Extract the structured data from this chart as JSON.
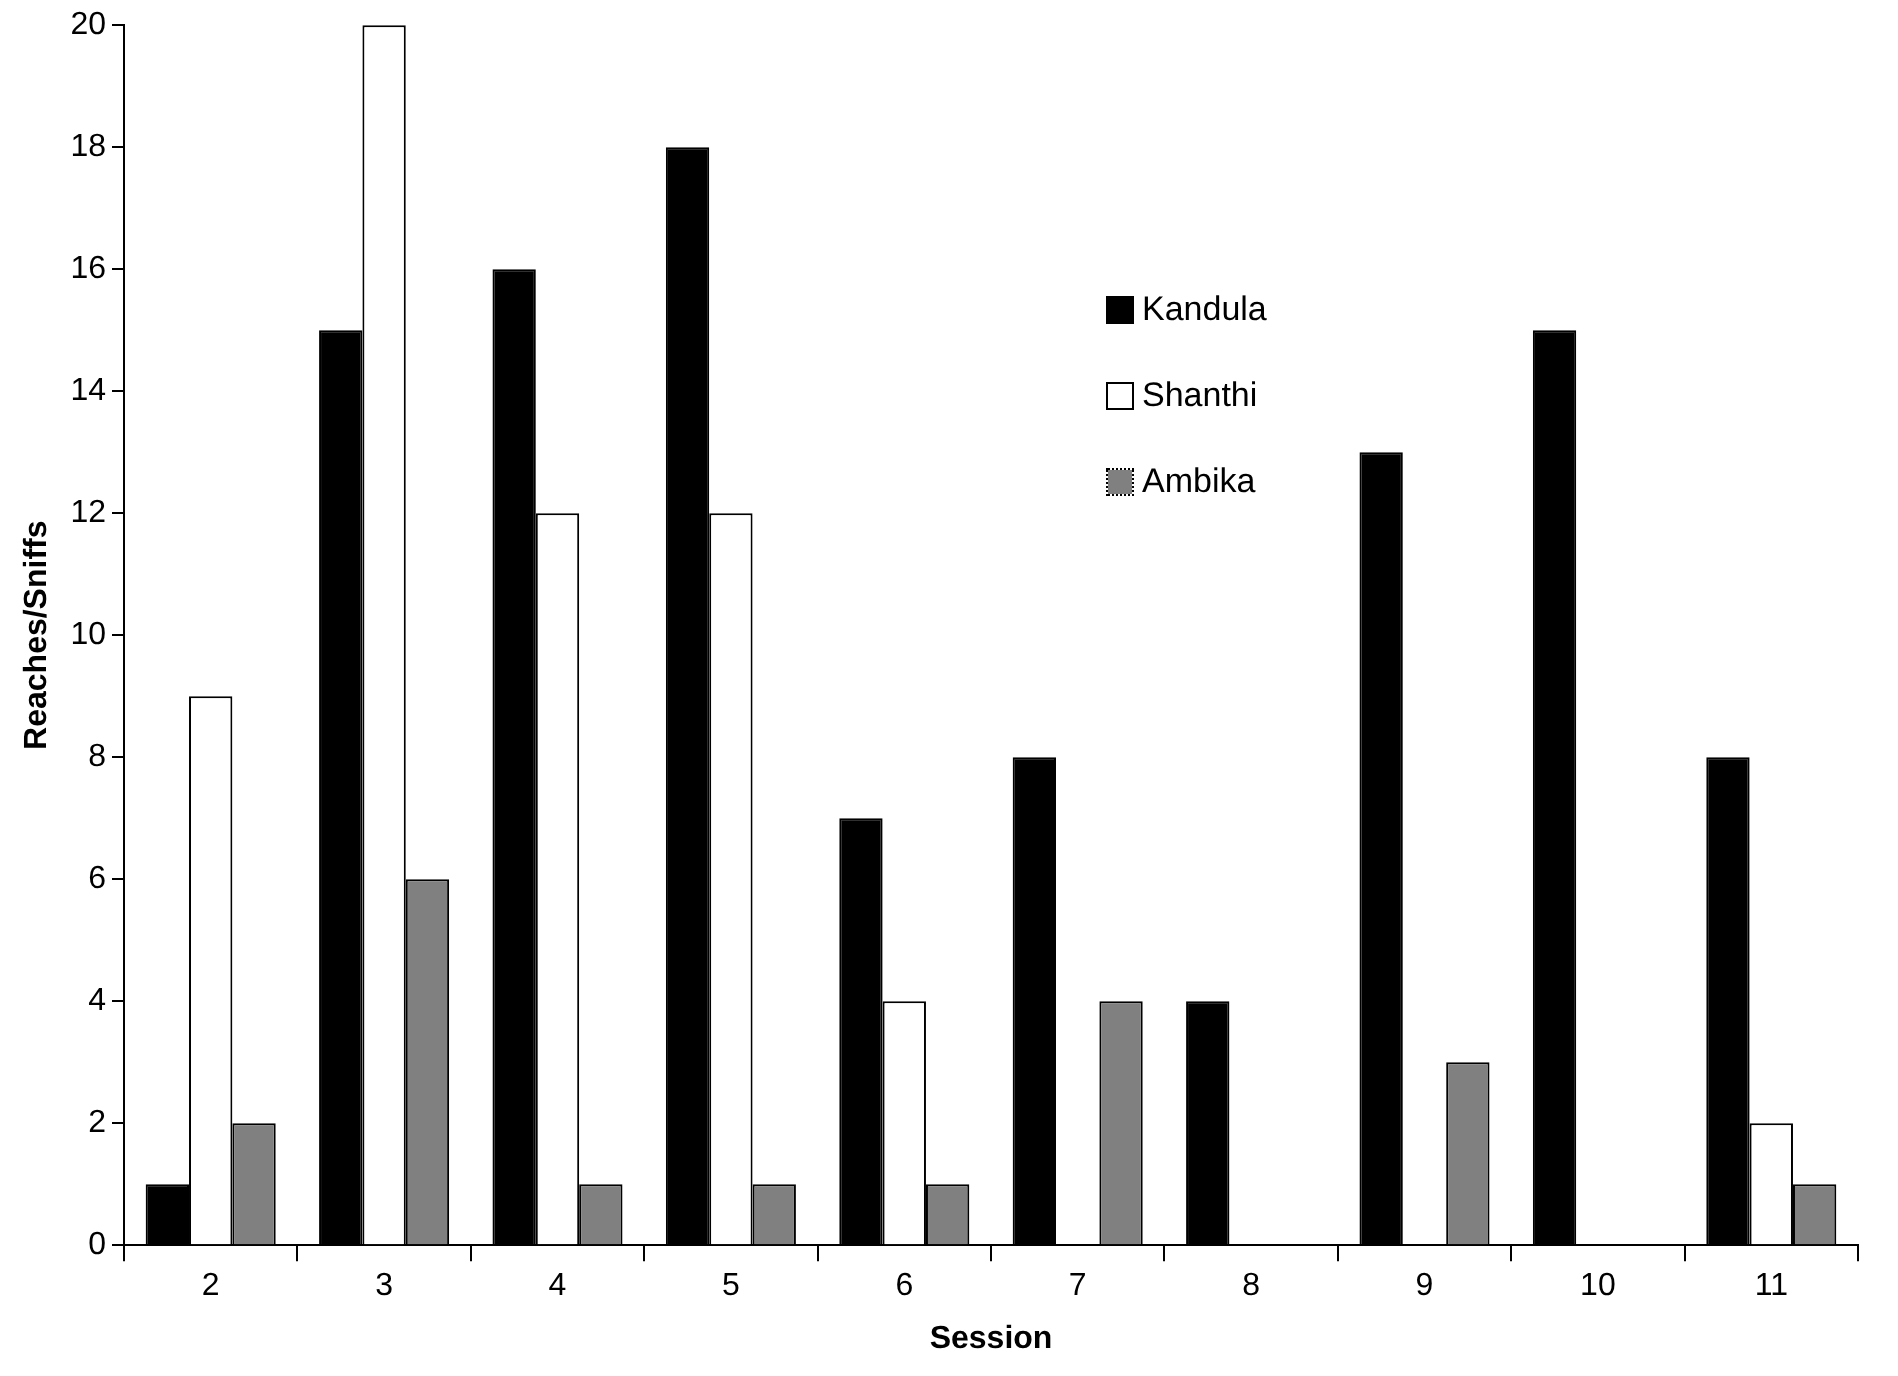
{
  "chart_data": {
    "type": "bar",
    "xlabel": "Session",
    "ylabel": "Reaches/Sniffs",
    "categories": [
      "2",
      "3",
      "4",
      "5",
      "6",
      "7",
      "8",
      "9",
      "10",
      "11"
    ],
    "series": [
      {
        "name": "Kandula",
        "color": "#000000",
        "values": [
          1,
          15,
          16,
          18,
          7,
          8,
          4,
          13,
          15,
          8
        ]
      },
      {
        "name": "Shanthi",
        "color": "#ffffff",
        "values": [
          9,
          20,
          12,
          12,
          4,
          0,
          0,
          0,
          0,
          2
        ]
      },
      {
        "name": "Ambika",
        "color": "#808080",
        "values": [
          2,
          6,
          1,
          1,
          1,
          4,
          0,
          3,
          0,
          1
        ]
      }
    ],
    "ylim": [
      0,
      20
    ],
    "yticks": [
      0,
      2,
      4,
      6,
      8,
      10,
      12,
      14,
      16,
      18,
      20
    ],
    "grid": false,
    "legend": "top right"
  }
}
